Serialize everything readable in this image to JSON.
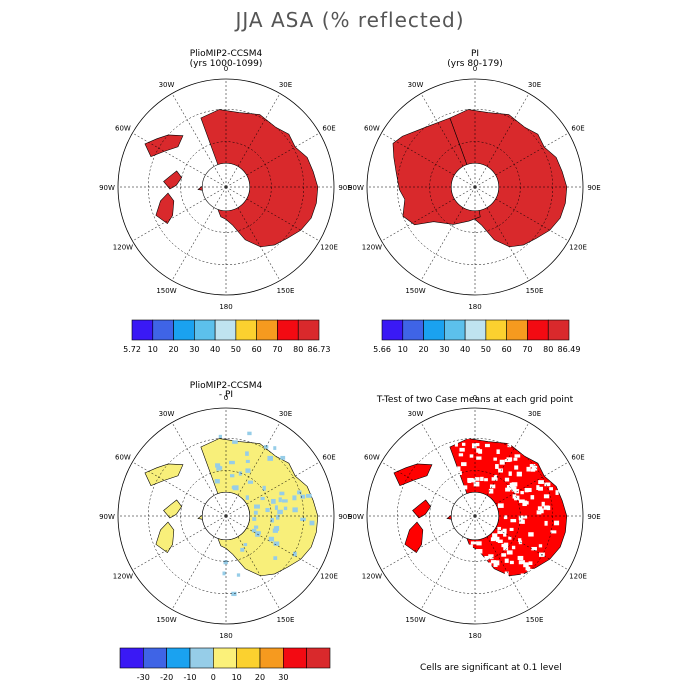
{
  "title": "JJA ASA (% reflected)",
  "panels": [
    {
      "title": "PlioMIP2-CCSM4",
      "subtitle": "(yrs 1000-1099)"
    },
    {
      "title": "PI",
      "subtitle": "(yrs 80-179)"
    },
    {
      "title": "PlioMIP2-CCSM4",
      "subtitle": "- PI"
    },
    {
      "title": "T-Test of two Case means at each grid point",
      "subtitle": ""
    }
  ],
  "lon_labels": [
    "0",
    "30E",
    "60E",
    "90E",
    "120E",
    "150E",
    "180",
    "150W",
    "120W",
    "90W",
    "60W",
    "30W"
  ],
  "colorbars": [
    {
      "colors": [
        "#3a19f5",
        "#3f64e6",
        "#1aa2f0",
        "#5cc0ec",
        "#bfe3f0",
        "#fbd12f",
        "#f69a1f",
        "#f30a12",
        "#d9292c"
      ],
      "labels": [
        "5.72",
        "10",
        "20",
        "30",
        "40",
        "50",
        "60",
        "70",
        "80",
        "86.73"
      ]
    },
    {
      "colors": [
        "#3a19f5",
        "#3f64e6",
        "#1aa2f0",
        "#5cc0ec",
        "#bfe3f0",
        "#fbd12f",
        "#f69a1f",
        "#f30a12",
        "#d9292c"
      ],
      "labels": [
        "5.66",
        "10",
        "20",
        "30",
        "40",
        "50",
        "60",
        "70",
        "80",
        "86.49"
      ]
    },
    {
      "colors": [
        "#3a19f5",
        "#3f64e6",
        "#1aa2f0",
        "#96cde8",
        "#fbf17a",
        "#fbd12f",
        "#f69a1f",
        "#f30a12",
        "#d9292c"
      ],
      "labels": [
        "-30",
        "-20",
        "-10",
        "0",
        "10",
        "20",
        "30"
      ]
    }
  ],
  "colors": {
    "ice_red": "#d9292c",
    "diff_yellow": "#f8ef7a",
    "diff_blue": "#96cde8",
    "sig_red": "#ff0000"
  },
  "note": "Cells are significant at 0.1 level"
}
